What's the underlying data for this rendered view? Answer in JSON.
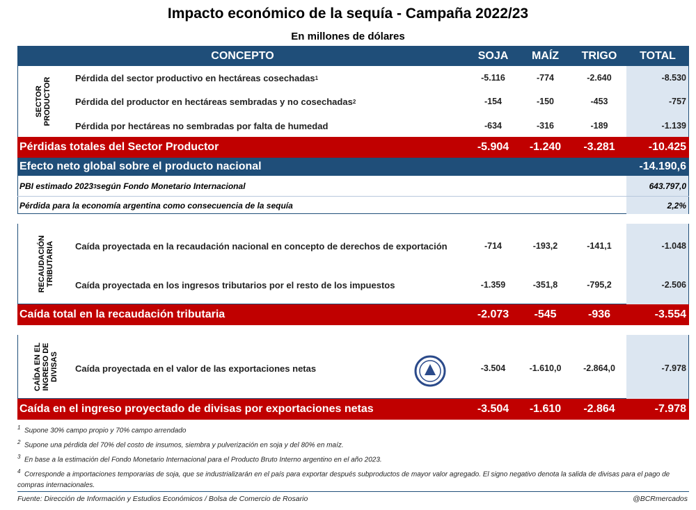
{
  "title": "Impacto económico de la sequía - Campaña 2022/23",
  "subtitle": "En millones de dólares",
  "header": [
    "CONCEPTO",
    "SOJA",
    "MAÍZ",
    "TRIGO",
    "TOTAL"
  ],
  "sections": [
    {
      "label": [
        "SECTOR",
        "PRODUCTOR"
      ],
      "rows": [
        {
          "concept": "Pérdida del sector productivo en hectáreas cosechadas",
          "note": "1",
          "values": [
            "-5.116",
            "-774",
            "-2.640",
            "-8.530"
          ]
        },
        {
          "concept": "Pérdida del productor en hectáreas sembradas y no cosechadas",
          "note": "2",
          "values": [
            "-154",
            "-150",
            "-453",
            "-757"
          ]
        },
        {
          "concept": "Pérdida por hectáreas no sembradas por falta de humedad",
          "values": [
            "-634",
            "-316",
            "-189",
            "-1.139"
          ]
        }
      ],
      "total": {
        "concept": "Pérdidas totales del Sector Productor",
        "values": [
          "-5.904",
          "-1.240",
          "-3.281",
          "-10.425"
        ]
      }
    },
    {
      "label": [
        "RECAUDACIÓN",
        "TRIBUTARIA"
      ],
      "rows": [
        {
          "concept": "Caída proyectada en la recaudación nacional en concepto de derechos de exportación",
          "values": [
            "-714",
            "-193,2",
            "-141,1",
            "-1.048"
          ]
        },
        {
          "concept": "Caída proyectada en los ingresos tributarios por el resto de los impuestos",
          "values": [
            "-1.359",
            "-351,8",
            "-795,2",
            "-2.506"
          ]
        }
      ],
      "total": {
        "concept": "Caída total en la recaudación tributaria",
        "values": [
          "-2.073",
          "-545",
          "-936",
          "-3.554"
        ]
      }
    },
    {
      "label": [
        "CAÍDA EN EL",
        "INGRESO DE",
        "DIVISAS"
      ],
      "rows": [
        {
          "concept": "Caída proyectada en el valor de las exportaciones netas",
          "values": [
            "-3.504",
            "-1.610,0",
            "-2.864,0",
            "-7.978"
          ]
        }
      ],
      "total": {
        "concept": "Caída en el ingreso proyectado de divisas por exportaciones netas",
        "values": [
          "-3.504",
          "-1.610",
          "-2.864",
          "-7.978"
        ]
      }
    }
  ],
  "net_effect": {
    "concept": "Efecto neto global sobre el producto nacional",
    "value": "-14.190,6"
  },
  "gdp": {
    "concept": "PBI estimado 2023",
    "note": "3",
    "concept_end": " según Fondo Monetario Internacional",
    "value": "643.797,0"
  },
  "loss_share": {
    "concept": "Pérdida para la economía argentina como consecuencia de la sequía",
    "value": "2,2%"
  },
  "footnotes": [
    {
      "mark": "1",
      "text": "Supone 30% campo propio y 70% campo arrendado"
    },
    {
      "mark": "2",
      "text": "Supone una pérdida del 70% del costo de insumos, siembra y pulverización en soja y del 80% en maíz."
    },
    {
      "mark": "3",
      "text": "En base a la estimación del Fondo Monetario Internacional para el Producto Bruto Interno argentino en el año 2023."
    },
    {
      "mark": "4",
      "text": "Corresponde a importaciones temporarias de soja, que se industrializarán en el país para exportar después subproductos de mayor valor agregado. El signo negativo denota la salida de divisas para el pago de compras internacionales."
    }
  ],
  "source": "Fuente: Dirección de Información y Estudios Económicos / Bolsa de Comercio de Rosario",
  "handle": "@BCRmercados"
}
